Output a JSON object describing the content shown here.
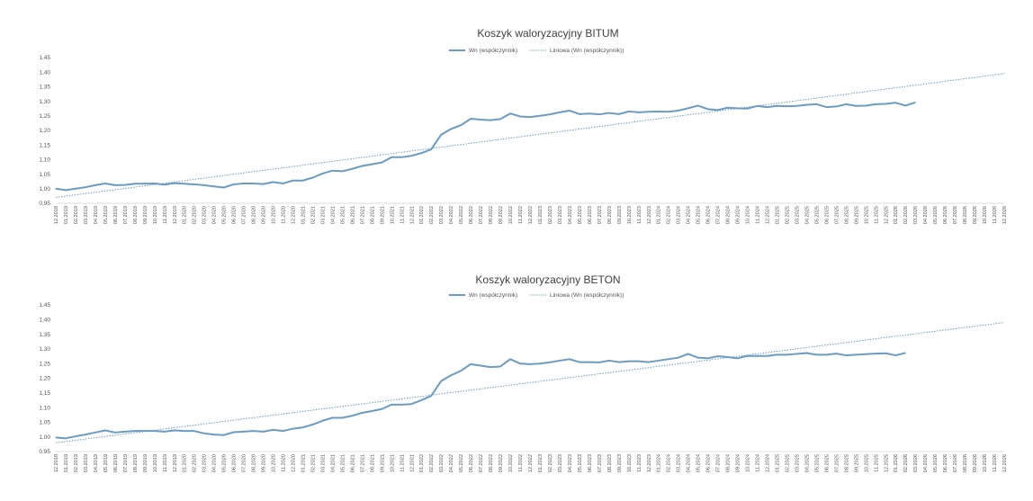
{
  "chart_data": [
    {
      "type": "line",
      "title": "Koszyk waloryzacyjny BITUM",
      "xlabel": "",
      "ylabel": "",
      "ylim": [
        0.95,
        1.45
      ],
      "yticks": [
        "0,95",
        "1,00",
        "1,05",
        "1,10",
        "1,15",
        "1,20",
        "1,25",
        "1,30",
        "1,35",
        "1,40",
        "1,45"
      ],
      "grid": false,
      "legend_position": "top-center",
      "legend": {
        "series": "Wn (współczynnik)",
        "trend": "Liniowa (Wn (współczynnik))"
      },
      "series_color": "#6a9bc3",
      "trend_color": "#6a9bc3",
      "x_start": "12.2018",
      "x_end": "12.2026",
      "trend": {
        "start": 0.97,
        "end": 1.395
      },
      "series": [
        {
          "name": "Wn (współczynnik)",
          "values": [
            1.0,
            0.995,
            1.0,
            1.005,
            1.012,
            1.018,
            1.012,
            1.013,
            1.017,
            1.017,
            1.018,
            1.014,
            1.019,
            1.017,
            1.015,
            1.012,
            1.008,
            1.004,
            1.015,
            1.018,
            1.018,
            1.016,
            1.023,
            1.018,
            1.028,
            1.028,
            1.038,
            1.052,
            1.062,
            1.06,
            1.068,
            1.078,
            1.084,
            1.09,
            1.108,
            1.108,
            1.113,
            1.122,
            1.135,
            1.185,
            1.205,
            1.218,
            1.24,
            1.237,
            1.235,
            1.239,
            1.258,
            1.248,
            1.246,
            1.25,
            1.255,
            1.262,
            1.268,
            1.256,
            1.258,
            1.255,
            1.26,
            1.256,
            1.265,
            1.262,
            1.264,
            1.265,
            1.264,
            1.268,
            1.276,
            1.285,
            1.273,
            1.27,
            1.278,
            1.276,
            1.275,
            1.284,
            1.28,
            1.284,
            1.283,
            1.284,
            1.288,
            1.29,
            1.28,
            1.282,
            1.29,
            1.284,
            1.285,
            1.29,
            1.291,
            1.295,
            1.285,
            1.296
          ]
        }
      ]
    },
    {
      "type": "line",
      "title": "Koszyk waloryzacyjny BETON",
      "xlabel": "",
      "ylabel": "",
      "ylim": [
        0.95,
        1.45
      ],
      "yticks": [
        "0,95",
        "1,00",
        "1,05",
        "1,10",
        "1,15",
        "1,20",
        "1,25",
        "1,30",
        "1,35",
        "1,40",
        "1,45"
      ],
      "grid": false,
      "legend_position": "top-center",
      "legend": {
        "series": "Wn (współczynnik)",
        "trend": "Liniowa (Wn (współczynnik))"
      },
      "series_color": "#6a9bc3",
      "trend_color": "#6a9bc3",
      "x_start": "12.2018",
      "x_end": "12.2026",
      "trend": {
        "start": 0.98,
        "end": 1.39
      },
      "series": [
        {
          "name": "Wn (współczynnik)",
          "values": [
            0.998,
            0.995,
            1.002,
            1.008,
            1.015,
            1.022,
            1.015,
            1.018,
            1.02,
            1.02,
            1.02,
            1.018,
            1.022,
            1.02,
            1.02,
            1.012,
            1.008,
            1.006,
            1.016,
            1.018,
            1.02,
            1.018,
            1.024,
            1.02,
            1.028,
            1.032,
            1.042,
            1.055,
            1.065,
            1.065,
            1.072,
            1.082,
            1.088,
            1.095,
            1.11,
            1.11,
            1.112,
            1.125,
            1.14,
            1.19,
            1.21,
            1.225,
            1.248,
            1.243,
            1.238,
            1.24,
            1.265,
            1.25,
            1.248,
            1.25,
            1.254,
            1.26,
            1.265,
            1.255,
            1.255,
            1.254,
            1.26,
            1.255,
            1.258,
            1.258,
            1.255,
            1.26,
            1.265,
            1.27,
            1.283,
            1.27,
            1.268,
            1.275,
            1.272,
            1.268,
            1.276,
            1.276,
            1.276,
            1.28,
            1.28,
            1.283,
            1.286,
            1.28,
            1.28,
            1.284,
            1.278,
            1.28,
            1.282,
            1.284,
            1.285,
            1.278,
            1.286
          ]
        }
      ]
    }
  ]
}
